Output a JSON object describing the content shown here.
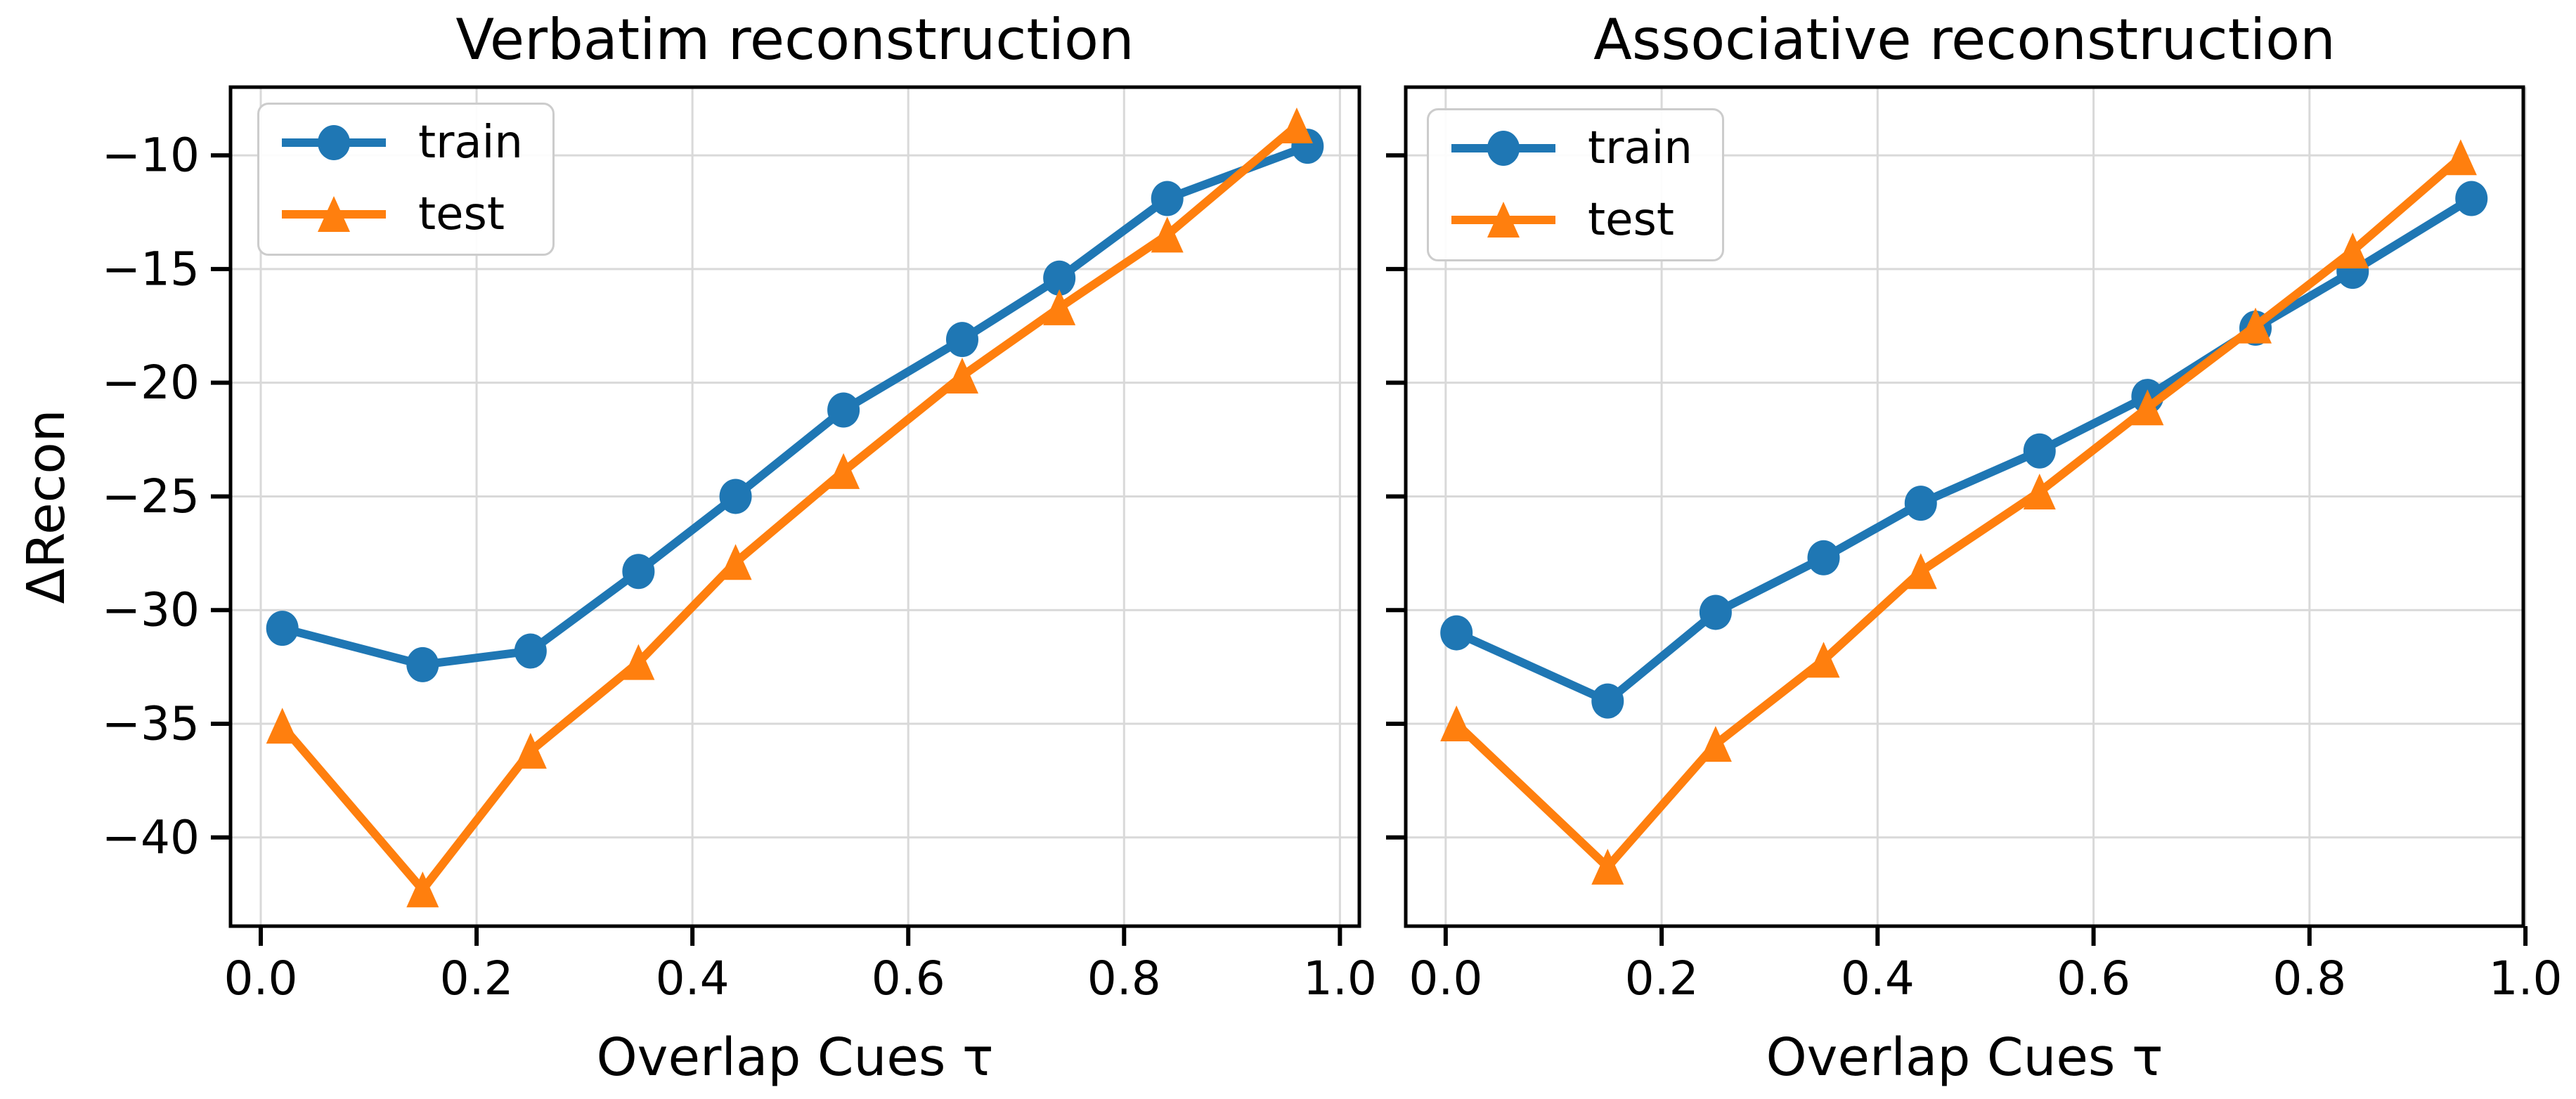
{
  "chart_data": [
    {
      "type": "line",
      "title": "Verbatim reconstruction",
      "xlabel": "Overlap Cues τ",
      "ylabel": "ΔRecon",
      "xlim": [
        -0.028,
        1.018
      ],
      "ylim": [
        -43.9,
        -7.0
      ],
      "xticks": [
        0.0,
        0.2,
        0.4,
        0.6,
        0.8,
        1.0
      ],
      "yticks": [
        -10,
        -15,
        -20,
        -25,
        -30,
        -35,
        -40
      ],
      "grid": true,
      "show_ytick_labels": true,
      "legend_position": "upper left",
      "series": [
        {
          "name": "train",
          "color": "#1f77b4",
          "marker": "circle",
          "x": [
            0.02,
            0.15,
            0.25,
            0.35,
            0.44,
            0.54,
            0.65,
            0.74,
            0.84,
            0.97
          ],
          "y": [
            -30.8,
            -32.4,
            -31.8,
            -28.3,
            -25.0,
            -21.2,
            -18.1,
            -15.4,
            -11.9,
            -9.6
          ]
        },
        {
          "name": "test",
          "color": "#ff7f0e",
          "marker": "triangle_up",
          "x": [
            0.02,
            0.15,
            0.25,
            0.35,
            0.44,
            0.54,
            0.65,
            0.74,
            0.84,
            0.96
          ],
          "y": [
            -35.1,
            -42.3,
            -36.2,
            -32.3,
            -27.9,
            -23.9,
            -19.7,
            -16.7,
            -13.5,
            -8.7
          ]
        }
      ]
    },
    {
      "type": "line",
      "title": "Associative reconstruction",
      "xlabel": "Overlap Cues τ",
      "ylabel": "",
      "xlim": [
        -0.037,
        0.998
      ],
      "ylim": [
        -43.9,
        -7.0
      ],
      "xticks": [
        0.0,
        0.2,
        0.4,
        0.6,
        0.8,
        1.0
      ],
      "yticks": [
        -10,
        -15,
        -20,
        -25,
        -30,
        -35,
        -40
      ],
      "grid": true,
      "show_ytick_labels": false,
      "legend_position": "upper left",
      "series": [
        {
          "name": "train",
          "color": "#1f77b4",
          "marker": "circle",
          "x": [
            0.01,
            0.15,
            0.25,
            0.35,
            0.44,
            0.55,
            0.65,
            0.75,
            0.84,
            0.95
          ],
          "y": [
            -31.0,
            -34.0,
            -30.1,
            -27.7,
            -25.3,
            -23.0,
            -20.6,
            -17.6,
            -15.1,
            -11.9
          ]
        },
        {
          "name": "test",
          "color": "#ff7f0e",
          "marker": "triangle_up",
          "x": [
            0.01,
            0.15,
            0.25,
            0.35,
            0.44,
            0.55,
            0.65,
            0.75,
            0.84,
            0.94
          ],
          "y": [
            -35.0,
            -41.3,
            -35.9,
            -32.2,
            -28.3,
            -24.8,
            -21.1,
            -17.5,
            -14.2,
            -10.1
          ]
        }
      ]
    }
  ],
  "style": {
    "grid_color": "#d9d9d9",
    "spine_color": "#000000",
    "tick_label_color": "#000000",
    "background": "#ffffff"
  }
}
